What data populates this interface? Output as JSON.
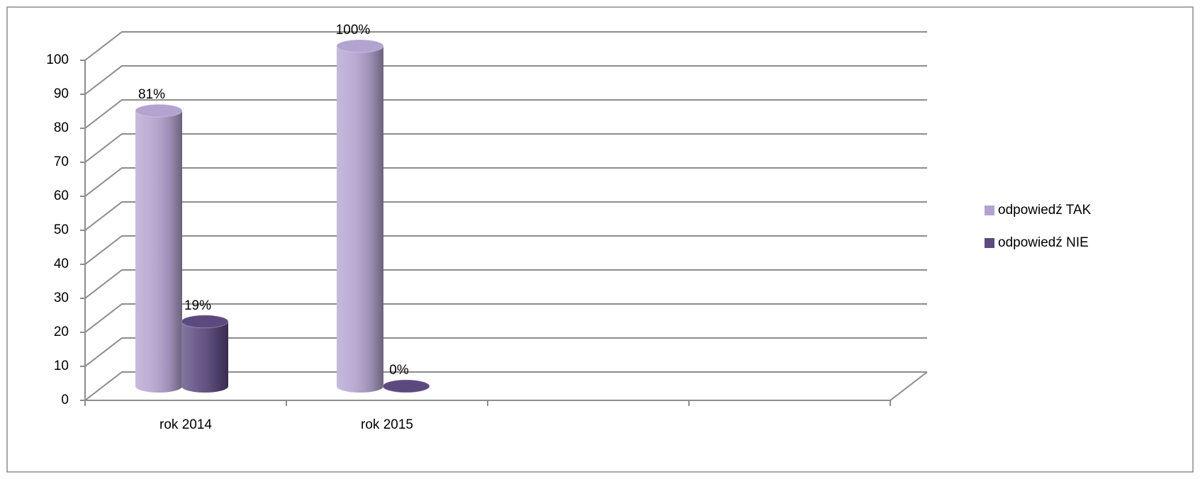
{
  "chart_data": {
    "type": "bar3d",
    "categories": [
      "rok 2014",
      "rok 2015",
      null,
      null
    ],
    "series": [
      {
        "name": "odpowiedź TAK",
        "color": "#b3a3cf",
        "values": [
          81,
          100,
          null,
          null
        ],
        "value_labels": [
          "81%",
          "100%",
          null,
          null
        ]
      },
      {
        "name": "odpowiedź NIE",
        "color": "#5c4a7f",
        "values": [
          19,
          0,
          null,
          null
        ],
        "value_labels": [
          "19%",
          "0%",
          null,
          null
        ]
      }
    ],
    "ylim": [
      0,
      100
    ],
    "yticks": [
      0,
      10,
      20,
      30,
      40,
      50,
      60,
      70,
      80,
      90,
      100
    ],
    "grid": true,
    "legend": "right"
  }
}
